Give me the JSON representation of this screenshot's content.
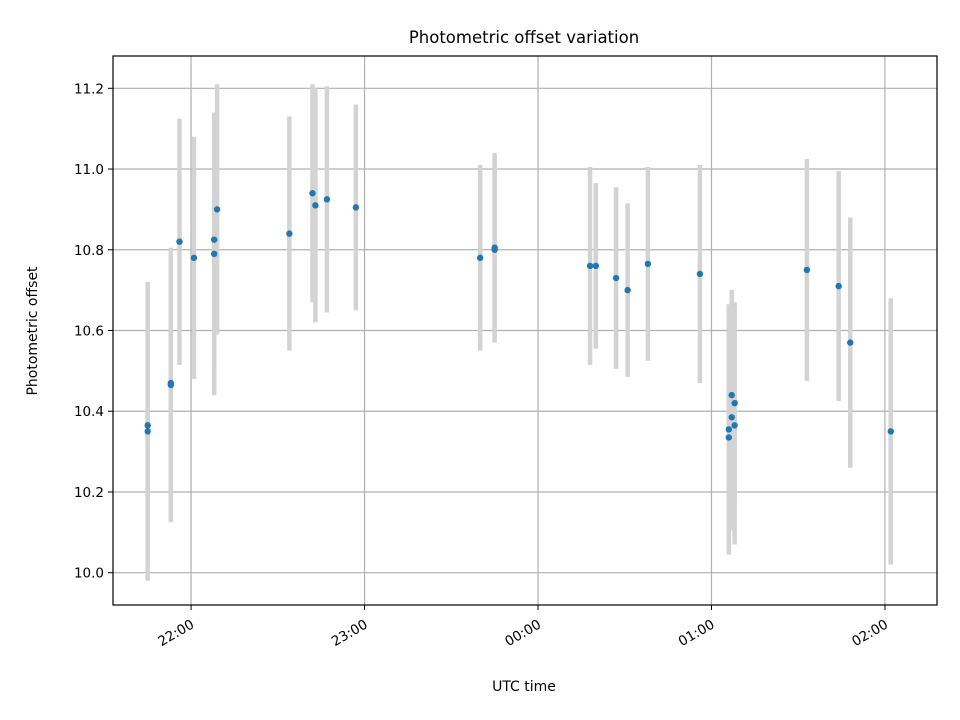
{
  "chart_data": {
    "type": "scatter",
    "title": "Photometric offset variation",
    "xlabel": "UTC time",
    "ylabel": "Photometric offset",
    "x_is_time": true,
    "xlim": [
      "21:33",
      "02:18"
    ],
    "ylim": [
      9.92,
      11.28
    ],
    "xticks": [
      "22:00",
      "23:00",
      "00:00",
      "01:00",
      "02:00"
    ],
    "yticks": [
      "10.0",
      "10.2",
      "10.4",
      "10.6",
      "10.8",
      "11.0",
      "11.2"
    ],
    "grid": true,
    "colors": {
      "points": "#1f77b4",
      "errorbars": "#d3d3d3",
      "grid": "#b0b0b0"
    },
    "series": [
      {
        "points": [
          {
            "x": "21:45",
            "y": 10.35,
            "yerr": 0.37
          },
          {
            "x": "21:45",
            "y": 10.365,
            "yerr": 0.34
          },
          {
            "x": "21:53",
            "y": 10.465,
            "yerr": 0.34
          },
          {
            "x": "21:53",
            "y": 10.47,
            "yerr": 0.32
          },
          {
            "x": "21:56",
            "y": 10.82,
            "yerr": 0.305
          },
          {
            "x": "22:01",
            "y": 10.78,
            "yerr": 0.3
          },
          {
            "x": "22:08",
            "y": 10.79,
            "yerr": 0.35
          },
          {
            "x": "22:08",
            "y": 10.825,
            "yerr": 0.315
          },
          {
            "x": "22:09",
            "y": 10.9,
            "yerr": 0.31
          },
          {
            "x": "22:34",
            "y": 10.84,
            "yerr": 0.29
          },
          {
            "x": "22:42",
            "y": 10.94,
            "yerr": 0.27
          },
          {
            "x": "22:43",
            "y": 10.91,
            "yerr": 0.29
          },
          {
            "x": "22:47",
            "y": 10.925,
            "yerr": 0.28
          },
          {
            "x": "22:57",
            "y": 10.905,
            "yerr": 0.255
          },
          {
            "x": "23:40",
            "y": 10.78,
            "yerr": 0.23
          },
          {
            "x": "23:45",
            "y": 10.805,
            "yerr": 0.235
          },
          {
            "x": "23:45",
            "y": 10.8,
            "yerr": 0.23
          },
          {
            "x": "00:18",
            "y": 10.76,
            "yerr": 0.245
          },
          {
            "x": "00:20",
            "y": 10.76,
            "yerr": 0.205
          },
          {
            "x": "00:27",
            "y": 10.73,
            "yerr": 0.225
          },
          {
            "x": "00:31",
            "y": 10.7,
            "yerr": 0.215
          },
          {
            "x": "00:38",
            "y": 10.765,
            "yerr": 0.24
          },
          {
            "x": "00:56",
            "y": 10.74,
            "yerr": 0.27
          },
          {
            "x": "01:06",
            "y": 10.335,
            "yerr": 0.28
          },
          {
            "x": "01:06",
            "y": 10.355,
            "yerr": 0.31
          },
          {
            "x": "01:07",
            "y": 10.385,
            "yerr": 0.28
          },
          {
            "x": "01:07",
            "y": 10.44,
            "yerr": 0.26
          },
          {
            "x": "01:08",
            "y": 10.42,
            "yerr": 0.25
          },
          {
            "x": "01:08",
            "y": 10.365,
            "yerr": 0.295
          },
          {
            "x": "01:33",
            "y": 10.75,
            "yerr": 0.275
          },
          {
            "x": "01:44",
            "y": 10.71,
            "yerr": 0.285
          },
          {
            "x": "01:48",
            "y": 10.57,
            "yerr": 0.31
          },
          {
            "x": "02:02",
            "y": 10.35,
            "yerr": 0.33
          }
        ]
      }
    ]
  }
}
